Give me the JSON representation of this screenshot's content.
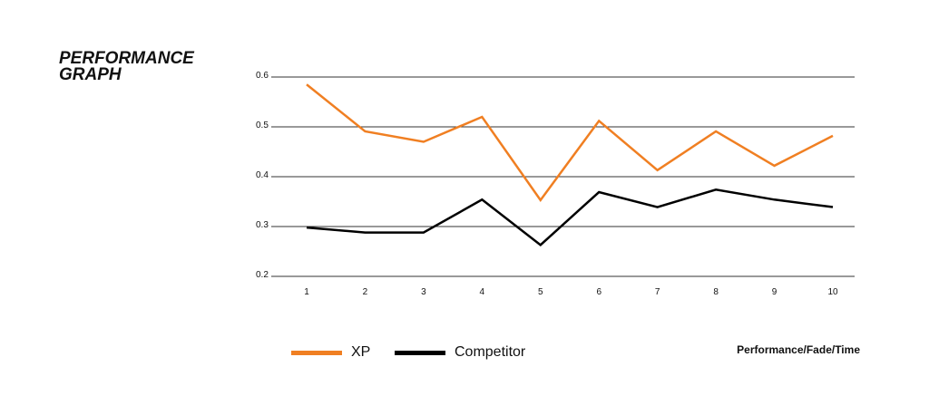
{
  "title_line1": "PERFORMANCE",
  "title_line2": "GRAPH",
  "chart_data": {
    "type": "line",
    "title": "PERFORMANCE GRAPH",
    "xlabel": "Performance/Fade/Time",
    "ylabel": "",
    "x": [
      1,
      2,
      3,
      4,
      5,
      6,
      7,
      8,
      9,
      10
    ],
    "xticks": [
      "1",
      "2",
      "3",
      "4",
      "5",
      "6",
      "7",
      "8",
      "9",
      "10"
    ],
    "yticks": [
      "0.6",
      "0.5",
      "0.4",
      "0.3",
      "0.2"
    ],
    "ylim": [
      0.2,
      0.6
    ],
    "grid": "horizontal",
    "legend": "bottom-left",
    "series": [
      {
        "name": "XP",
        "color": "#f07f22",
        "values": [
          0.585,
          0.491,
          0.47,
          0.52,
          0.353,
          0.512,
          0.413,
          0.491,
          0.422,
          0.482
        ]
      },
      {
        "name": "Competitor",
        "color": "#000000",
        "values": [
          0.298,
          0.288,
          0.288,
          0.354,
          0.263,
          0.369,
          0.339,
          0.374,
          0.354,
          0.339
        ]
      }
    ]
  }
}
